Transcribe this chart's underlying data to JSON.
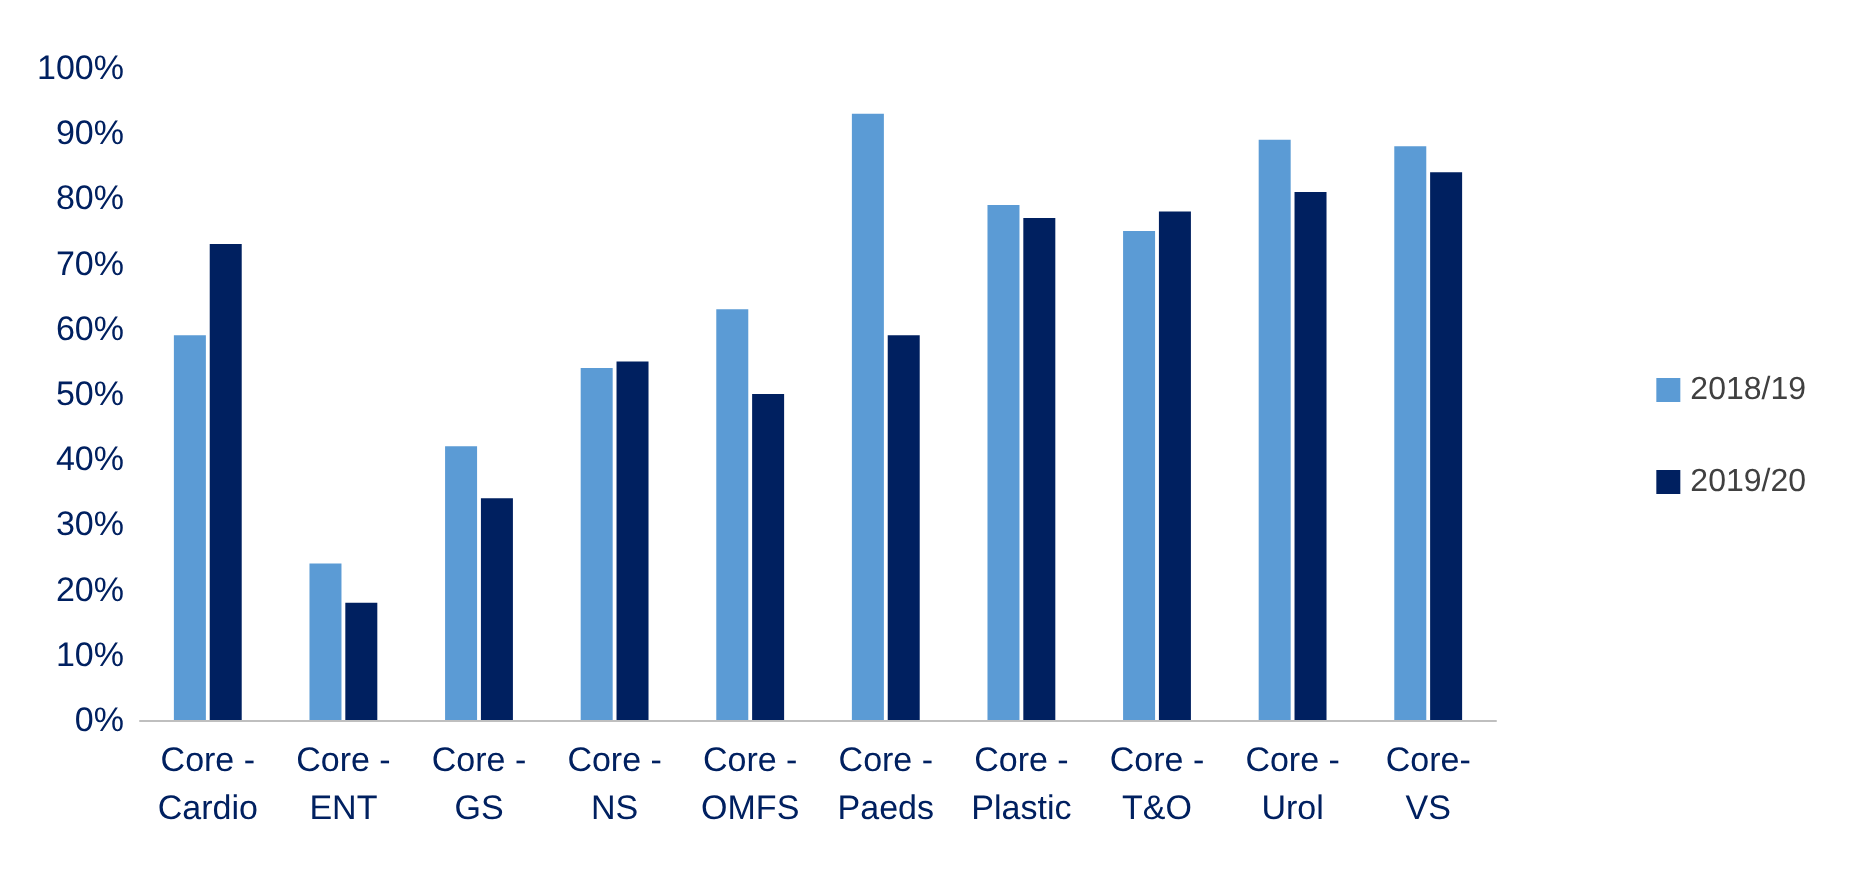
{
  "chart_data": {
    "type": "bar",
    "categories": [
      "Core -\nCardio",
      "Core -\nENT",
      "Core -\nGS",
      "Core -\nNS",
      "Core -\nOMFS",
      "Core -\nPaeds",
      "Core -\nPlastic",
      "Core -\nT&O",
      "Core -\nUrol",
      "Core-\nVS"
    ],
    "series": [
      {
        "name": "2018/19",
        "color": "#5b9bd5",
        "values": [
          59,
          24,
          42,
          54,
          63,
          93,
          79,
          75,
          89,
          88
        ]
      },
      {
        "name": "2019/20",
        "color": "#002060",
        "values": [
          73,
          18,
          34,
          55,
          50,
          59,
          77,
          78,
          81,
          84
        ]
      }
    ],
    "ylim": [
      0,
      100
    ],
    "yticks": [
      {
        "value": 0,
        "label": "0%"
      },
      {
        "value": 10,
        "label": "10%"
      },
      {
        "value": 20,
        "label": "20%"
      },
      {
        "value": 30,
        "label": "30%"
      },
      {
        "value": 40,
        "label": "40%"
      },
      {
        "value": 50,
        "label": "50%"
      },
      {
        "value": 60,
        "label": "60%"
      },
      {
        "value": 70,
        "label": "70%"
      },
      {
        "value": 80,
        "label": "80%"
      },
      {
        "value": 90,
        "label": "90%"
      },
      {
        "value": 100,
        "label": "100%"
      }
    ],
    "grid": false,
    "legend": "right"
  }
}
